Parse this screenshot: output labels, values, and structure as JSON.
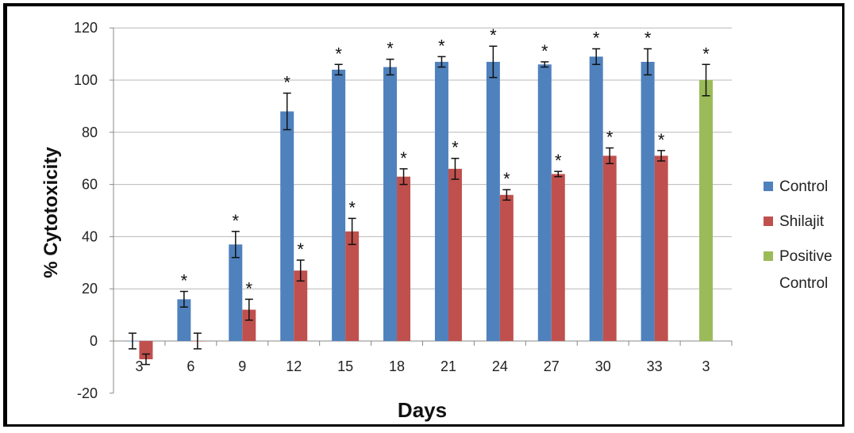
{
  "chart_data": {
    "type": "bar",
    "xlabel": "Days",
    "ylabel": "% Cytotoxicity",
    "ylim": [
      -20,
      120
    ],
    "yticks": [
      -20,
      0,
      20,
      40,
      60,
      80,
      100,
      120
    ],
    "grid": "horizontal",
    "legend_position": "right",
    "categories": [
      "3",
      "6",
      "9",
      "12",
      "15",
      "18",
      "21",
      "24",
      "27",
      "30",
      "33",
      "3"
    ],
    "series": [
      {
        "name": "Control",
        "color": "#4f81bd",
        "values": [
          0,
          16,
          37,
          88,
          104,
          105,
          107,
          107,
          106,
          109,
          107,
          null
        ],
        "errors": [
          3,
          3,
          5,
          7,
          2,
          3,
          2,
          6,
          1,
          3,
          5,
          null
        ],
        "significant": [
          false,
          true,
          true,
          true,
          true,
          true,
          true,
          true,
          true,
          true,
          true,
          false
        ]
      },
      {
        "name": "Shilajit",
        "color": "#c0504d",
        "values": [
          -7,
          0,
          12,
          27,
          42,
          63,
          66,
          56,
          64,
          71,
          71,
          null
        ],
        "errors": [
          2,
          3,
          4,
          4,
          5,
          3,
          4,
          2,
          1,
          3,
          2,
          null
        ],
        "significant": [
          false,
          false,
          true,
          true,
          true,
          true,
          true,
          true,
          true,
          true,
          true,
          false
        ]
      },
      {
        "name": "Positive Control",
        "name_lines": [
          "Positive",
          "Control"
        ],
        "color": "#9bbb59",
        "values": [
          null,
          null,
          null,
          null,
          null,
          null,
          null,
          null,
          null,
          null,
          null,
          100
        ],
        "errors": [
          null,
          null,
          null,
          null,
          null,
          null,
          null,
          null,
          null,
          null,
          null,
          6
        ],
        "significant": [
          false,
          false,
          false,
          false,
          false,
          false,
          false,
          false,
          false,
          false,
          false,
          true
        ]
      }
    ],
    "significance_marker": "*"
  }
}
